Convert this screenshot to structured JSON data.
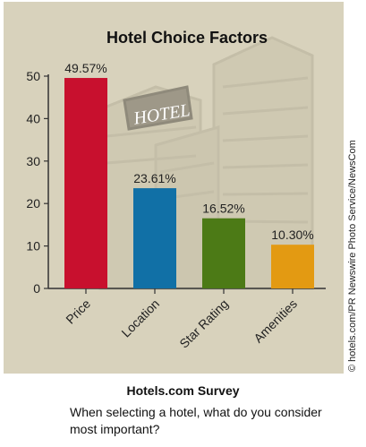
{
  "chart_data": {
    "type": "bar",
    "title": "Hotel Choice Factors",
    "categories": [
      "Price",
      "Location",
      "Star Rating",
      "Amenities"
    ],
    "values": [
      49.57,
      23.61,
      16.52,
      10.3
    ],
    "value_labels": [
      "49.57%",
      "23.61%",
      "16.52%",
      "10.30%"
    ],
    "bar_colors": [
      "#c8102e",
      "#1170a6",
      "#4c7a16",
      "#e39a12"
    ],
    "ylim": [
      0,
      50
    ],
    "yticks": [
      0,
      10,
      20,
      30,
      40,
      50
    ],
    "xlabel": "",
    "ylabel": "",
    "grid": false,
    "background_image": "hotel-building-photo"
  },
  "caption": {
    "title": "Hotels.com Survey",
    "question": "When selecting a hotel, what do you consider most important?"
  },
  "credit": "© hotels.com/PR Newswire Photo Service/NewsCom"
}
